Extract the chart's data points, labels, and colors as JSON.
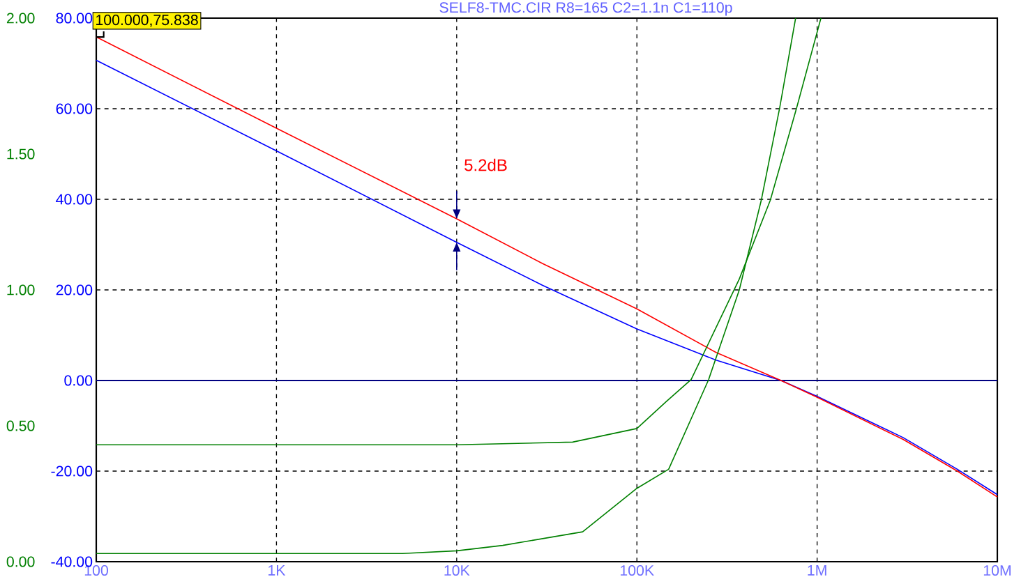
{
  "chart_data": {
    "type": "line",
    "title": "SELF8-TMC.CIR R8=165 C2=1.1n C1=110p",
    "log": "x",
    "grid": true,
    "marker": "none",
    "line_style": "solid",
    "xlim": [
      100,
      10000000
    ],
    "xticks": [
      100,
      {
        "value": 1000,
        "label": "1K"
      },
      {
        "value": 10000,
        "label": "10K"
      },
      {
        "value": 100000,
        "label": "100K"
      },
      {
        "value": 1000000,
        "label": "1M"
      },
      {
        "value": 10000000,
        "label": "10M"
      }
    ],
    "ylim": [
      -40,
      80
    ],
    "yticks": [
      {
        "value": -40,
        "label": "-40.00"
      },
      {
        "value": -20,
        "label": "-20.00"
      },
      {
        "value": 0,
        "label": "0.00"
      },
      {
        "value": 20,
        "label": "20.00"
      },
      {
        "value": 40,
        "label": "40.00"
      },
      {
        "value": 60,
        "label": "60.00"
      },
      {
        "value": 80,
        "label": "80.00"
      }
    ],
    "y2lim": [
      0,
      2
    ],
    "y2ticks": [
      {
        "value": 0,
        "label": "0.00"
      },
      {
        "value": 0.5,
        "label": "0.50"
      },
      {
        "value": 1,
        "label": "1.00"
      },
      {
        "value": 1.5,
        "label": "1.50"
      },
      {
        "value": 2,
        "label": "2.00"
      }
    ],
    "ref_lines": [
      {
        "axis": "y",
        "value": 0,
        "color": "#000080"
      }
    ],
    "series": [
      {
        "color": "#ff0000",
        "x": [
          100,
          1000,
          10000,
          30000,
          100000,
          275000,
          631000,
          1000000,
          3000000,
          6000000,
          10000000
        ],
        "values": [
          75.838,
          55.7,
          35.7,
          25.8,
          15.8,
          6.2,
          0,
          -3.7,
          -13,
          -20,
          -25.7
        ]
      },
      {
        "color": "#0000ff",
        "x": [
          100,
          1000,
          10000,
          30000,
          100000,
          275000,
          631000,
          1000000,
          3000000,
          6000000,
          10000000
        ],
        "values": [
          70.7,
          50.7,
          30.5,
          21,
          11.4,
          4.5,
          0,
          -3.5,
          -12.6,
          -19.6,
          -25.2
        ]
      },
      {
        "color": "#008000",
        "axis": "y2",
        "x": [
          100,
          10000,
          44000,
          100000,
          146000,
          200000,
          370000,
          550000,
          770000,
          1050000
        ],
        "values": [
          0.43,
          0.43,
          0.44,
          0.49,
          0.59,
          0.67,
          1.04,
          1.33,
          1.67,
          2.0
        ]
      },
      {
        "color": "#008000",
        "axis": "y2",
        "x": [
          100,
          5000,
          10000,
          18000,
          50000,
          100000,
          150000,
          250000,
          370000,
          490000,
          620000,
          760000
        ],
        "values": [
          0.03,
          0.03,
          0.04,
          0.06,
          0.11,
          0.27,
          0.34,
          0.67,
          1.0,
          1.33,
          1.67,
          2.0
        ]
      }
    ],
    "annotations": [
      {
        "text": "100.000,75.838",
        "x": 100,
        "y": 75.838
      },
      {
        "text": "5.2dB",
        "x": 10000,
        "y": 35.7
      }
    ]
  }
}
